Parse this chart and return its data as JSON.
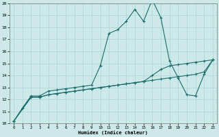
{
  "xlabel": "Humidex (Indice chaleur)",
  "xlim": [
    -0.5,
    23.5
  ],
  "ylim": [
    10,
    20
  ],
  "xticks": [
    0,
    1,
    2,
    3,
    4,
    5,
    6,
    7,
    8,
    9,
    10,
    11,
    12,
    13,
    14,
    15,
    16,
    17,
    18,
    19,
    20,
    21,
    22,
    23
  ],
  "yticks": [
    10,
    11,
    12,
    13,
    14,
    15,
    16,
    17,
    18,
    19,
    20
  ],
  "bg_color": "#cce8e8",
  "grid_color": "#aad4d4",
  "line_color": "#1a6b6b",
  "line1_x": [
    0,
    1,
    2,
    3,
    4,
    5,
    6,
    7,
    8,
    9,
    10,
    11,
    12,
    13,
    14,
    15,
    16,
    17,
    18,
    19,
    20,
    21,
    22,
    23
  ],
  "line1_y": [
    10.2,
    11.3,
    12.3,
    12.3,
    12.7,
    12.8,
    12.9,
    13.0,
    13.1,
    13.2,
    14.8,
    17.5,
    17.8,
    18.5,
    19.5,
    18.5,
    20.3,
    18.8,
    15.2,
    13.8,
    12.4,
    12.3,
    14.1,
    15.3
  ],
  "line2_x": [
    0,
    2,
    3,
    4,
    5,
    6,
    7,
    8,
    9,
    10,
    11,
    12,
    13,
    14,
    15,
    16,
    17,
    18,
    19,
    20,
    21,
    22,
    23
  ],
  "line2_y": [
    10.2,
    12.2,
    12.2,
    12.4,
    12.5,
    12.6,
    12.7,
    12.8,
    12.9,
    13.0,
    13.1,
    13.2,
    13.3,
    13.4,
    13.5,
    13.6,
    13.7,
    13.8,
    13.9,
    14.0,
    14.1,
    14.3,
    15.3
  ],
  "line3_x": [
    0,
    2,
    3,
    4,
    5,
    6,
    7,
    8,
    9,
    10,
    11,
    12,
    13,
    14,
    15,
    16,
    17,
    18,
    19,
    20,
    21,
    22,
    23
  ],
  "line3_y": [
    10.2,
    12.2,
    12.2,
    12.4,
    12.5,
    12.6,
    12.7,
    12.8,
    12.9,
    13.0,
    13.1,
    13.2,
    13.3,
    13.4,
    13.5,
    14.0,
    14.5,
    14.8,
    14.9,
    15.0,
    15.1,
    15.2,
    15.3
  ]
}
